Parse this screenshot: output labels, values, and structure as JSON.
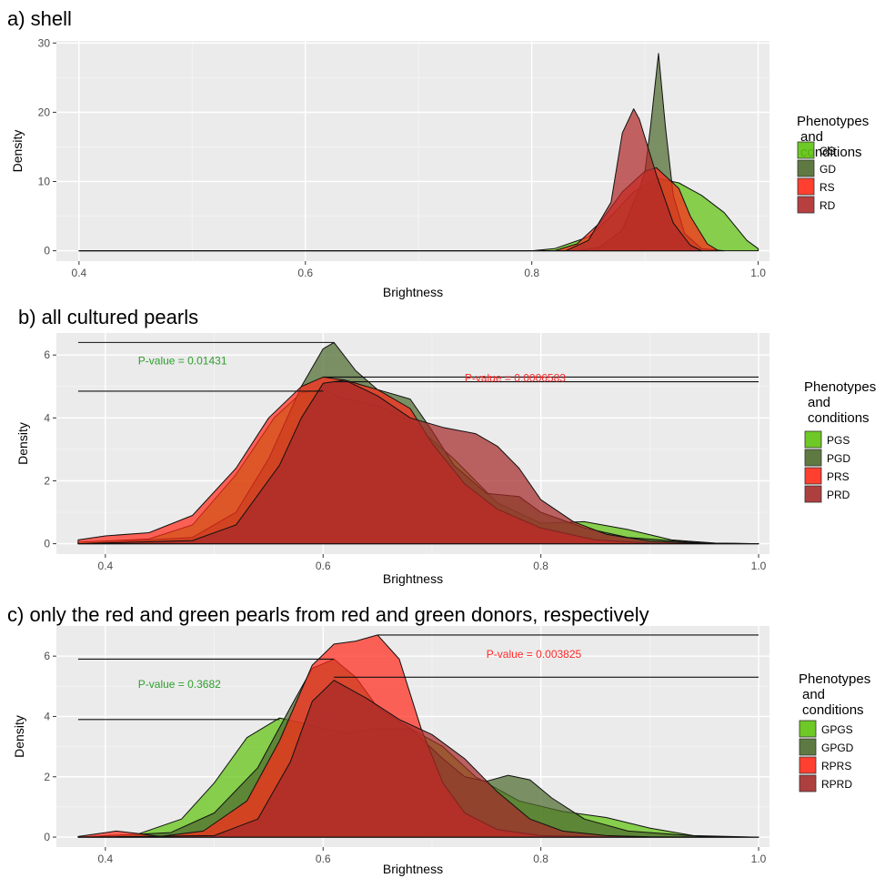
{
  "chart_data": [
    {
      "type": "area",
      "title": "a) shell",
      "xlabel": "Brightness",
      "ylabel": "Density",
      "xlim": [
        0.38,
        1.01
      ],
      "ylim": [
        -1.5,
        30.3
      ],
      "xticks": [
        0.4,
        0.6,
        0.8,
        1.0
      ],
      "xtick_labels": [
        "0.4",
        "0.6",
        "0.8",
        "1.0"
      ],
      "yticks": [
        0,
        10,
        20,
        30
      ],
      "ytick_labels": [
        "0",
        "10",
        "20",
        "30"
      ],
      "grid": true,
      "legend": {
        "title_lines": [
          "Phenotypes",
          "and",
          "conditions"
        ],
        "placement": "right"
      },
      "series": [
        {
          "name": "GS",
          "color": "#5ec20e",
          "x": [
            0.4,
            0.8,
            0.82,
            0.85,
            0.87,
            0.89,
            0.91,
            0.93,
            0.95,
            0.97,
            0.99,
            1.0
          ],
          "y": [
            0,
            0,
            0.3,
            2,
            5,
            8.5,
            10.5,
            9.8,
            8,
            5.5,
            1.5,
            0.3
          ]
        },
        {
          "name": "GD",
          "color": "#4d6b2e",
          "x": [
            0.4,
            0.84,
            0.86,
            0.88,
            0.895,
            0.9,
            0.905,
            0.912,
            0.918,
            0.925,
            0.935,
            0.95,
            0.97
          ],
          "y": [
            0,
            0,
            0.5,
            3,
            9,
            11.5,
            18,
            28.5,
            18,
            8,
            2.5,
            0.3,
            0
          ]
        },
        {
          "name": "RS",
          "color": "#ff2a1a",
          "x": [
            0.4,
            0.82,
            0.84,
            0.86,
            0.88,
            0.9,
            0.91,
            0.93,
            0.94,
            0.955,
            0.965
          ],
          "y": [
            0,
            0,
            1,
            4,
            8.5,
            11.5,
            12,
            9,
            5,
            1,
            0
          ]
        },
        {
          "name": "RD",
          "color": "#b02a2a",
          "x": [
            0.4,
            0.83,
            0.85,
            0.87,
            0.88,
            0.89,
            0.895,
            0.91,
            0.925,
            0.94,
            0.95
          ],
          "y": [
            0,
            0,
            1.5,
            7,
            17,
            20.5,
            19,
            11,
            4,
            0.8,
            0
          ]
        }
      ]
    },
    {
      "type": "area",
      "title": "b) all cultured pearls",
      "xlabel": "Brightness",
      "ylabel": "Density",
      "xlim": [
        0.355,
        1.01
      ],
      "ylim": [
        -0.33,
        6.7
      ],
      "xticks": [
        0.4,
        0.6,
        0.8,
        1.0
      ],
      "xtick_labels": [
        "0.4",
        "0.6",
        "0.8",
        "1.0"
      ],
      "yticks": [
        0,
        2,
        4,
        6
      ],
      "ytick_labels": [
        "0",
        "2",
        "4",
        "6"
      ],
      "grid": true,
      "legend": {
        "title_lines": [
          "Phenotypes",
          "and",
          "conditions"
        ],
        "placement": "right"
      },
      "series": [
        {
          "name": "PGS",
          "color": "#5ec20e",
          "x": [
            0.375,
            0.44,
            0.48,
            0.52,
            0.555,
            0.58,
            0.6,
            0.62,
            0.65,
            0.68,
            0.72,
            0.76,
            0.8,
            0.84,
            0.88,
            0.92,
            0.96,
            1.0
          ],
          "y": [
            0.05,
            0.15,
            0.6,
            2.2,
            4.0,
            4.8,
            4.9,
            4.6,
            4.4,
            3.9,
            2.7,
            1.3,
            0.65,
            0.7,
            0.45,
            0.12,
            0.02,
            0
          ]
        },
        {
          "name": "PGD",
          "color": "#4d6b2e",
          "x": [
            0.375,
            0.48,
            0.52,
            0.55,
            0.58,
            0.6,
            0.61,
            0.63,
            0.65,
            0.68,
            0.7,
            0.72,
            0.75,
            0.78,
            0.8,
            0.84,
            0.88,
            0.95,
            1.0
          ],
          "y": [
            0,
            0.2,
            1.0,
            2.7,
            5.0,
            6.2,
            6.4,
            5.5,
            4.9,
            4.6,
            3.6,
            2.5,
            1.6,
            1.5,
            1.0,
            0.5,
            0.2,
            0.02,
            0
          ]
        },
        {
          "name": "PRS",
          "color": "#ff2a1a",
          "x": [
            0.375,
            0.4,
            0.44,
            0.48,
            0.52,
            0.55,
            0.58,
            0.6,
            0.62,
            0.65,
            0.68,
            0.7,
            0.73,
            0.76,
            0.8,
            0.85,
            0.9,
            1.0
          ],
          "y": [
            0.12,
            0.25,
            0.35,
            0.9,
            2.4,
            4.0,
            5.0,
            5.3,
            5.2,
            4.9,
            4.3,
            3.2,
            1.9,
            1.1,
            0.5,
            0.12,
            0.02,
            0
          ]
        },
        {
          "name": "PRD",
          "color": "#a52a2a",
          "x": [
            0.375,
            0.48,
            0.52,
            0.56,
            0.58,
            0.6,
            0.62,
            0.65,
            0.68,
            0.71,
            0.74,
            0.76,
            0.78,
            0.8,
            0.83,
            0.86,
            0.9,
            0.95,
            1.0
          ],
          "y": [
            0,
            0.1,
            0.6,
            2.5,
            4.0,
            5.1,
            5.2,
            4.7,
            4.0,
            3.7,
            3.5,
            3.1,
            2.4,
            1.4,
            0.7,
            0.3,
            0.08,
            0.01,
            0
          ]
        }
      ],
      "reference_lines": [
        {
          "x_from": 0.375,
          "x_to": 0.61,
          "y": 6.4
        },
        {
          "x_from": 0.375,
          "x_to": 0.6,
          "y": 4.85
        },
        {
          "x_from": 0.6,
          "x_to": 1.0,
          "y": 5.3
        },
        {
          "x_from": 0.61,
          "x_to": 1.0,
          "y": 5.15
        }
      ],
      "annotations": [
        {
          "text": "P-value = 0.01431",
          "x": 0.43,
          "y": 5.7,
          "color": "#2e9e2e"
        },
        {
          "text": "P-value = 0.0006583",
          "x": 0.73,
          "y": 5.15,
          "color": "#ff2a2a"
        }
      ]
    },
    {
      "type": "area",
      "title": "c) only the red and green pearls from red and green donors, respectively",
      "xlabel": "Brightness",
      "ylabel": "Density",
      "xlim": [
        0.355,
        1.01
      ],
      "ylim": [
        -0.33,
        7.0
      ],
      "xticks": [
        0.4,
        0.6,
        0.8,
        1.0
      ],
      "xtick_labels": [
        "0.4",
        "0.6",
        "0.8",
        "1.0"
      ],
      "yticks": [
        0,
        2,
        4,
        6
      ],
      "ytick_labels": [
        "0",
        "2",
        "4",
        "6"
      ],
      "grid": true,
      "legend": {
        "title_lines": [
          "Phenotypes",
          "and",
          "conditions"
        ],
        "placement": "right"
      },
      "series": [
        {
          "name": "GPGS",
          "color": "#5ec20e",
          "x": [
            0.375,
            0.43,
            0.47,
            0.5,
            0.53,
            0.56,
            0.59,
            0.62,
            0.65,
            0.68,
            0.71,
            0.74,
            0.78,
            0.82,
            0.86,
            0.9,
            0.94,
            1.0
          ],
          "y": [
            0,
            0.1,
            0.6,
            1.8,
            3.3,
            3.95,
            3.7,
            3.45,
            3.6,
            3.6,
            3.0,
            2.0,
            1.2,
            0.85,
            0.65,
            0.3,
            0.05,
            0
          ]
        },
        {
          "name": "GPGD",
          "color": "#4d6b2e",
          "x": [
            0.375,
            0.46,
            0.5,
            0.54,
            0.57,
            0.59,
            0.61,
            0.63,
            0.65,
            0.68,
            0.71,
            0.73,
            0.75,
            0.77,
            0.79,
            0.81,
            0.84,
            0.88,
            0.95,
            1.0
          ],
          "y": [
            0,
            0.15,
            0.8,
            2.3,
            4.3,
            5.6,
            5.9,
            5.3,
            4.3,
            3.6,
            2.6,
            2.0,
            1.85,
            2.05,
            1.9,
            1.3,
            0.6,
            0.2,
            0.02,
            0
          ]
        },
        {
          "name": "RPRS",
          "color": "#ff2a1a",
          "x": [
            0.375,
            0.4,
            0.41,
            0.43,
            0.45,
            0.49,
            0.53,
            0.56,
            0.59,
            0.61,
            0.63,
            0.65,
            0.67,
            0.69,
            0.71,
            0.73,
            0.76,
            0.8,
            0.85,
            1.0
          ],
          "y": [
            0.02,
            0.15,
            0.2,
            0.12,
            0.02,
            0.2,
            1.2,
            3.2,
            5.7,
            6.4,
            6.5,
            6.7,
            5.9,
            3.6,
            1.8,
            0.8,
            0.25,
            0.05,
            0.01,
            0
          ]
        },
        {
          "name": "RPRD",
          "color": "#a52a2a",
          "x": [
            0.375,
            0.5,
            0.54,
            0.57,
            0.59,
            0.61,
            0.64,
            0.67,
            0.7,
            0.73,
            0.76,
            0.79,
            0.82,
            0.86,
            0.9,
            1.0
          ],
          "y": [
            0,
            0.05,
            0.6,
            2.5,
            4.5,
            5.2,
            4.6,
            3.9,
            3.4,
            2.6,
            1.5,
            0.6,
            0.2,
            0.05,
            0.01,
            0
          ]
        }
      ],
      "reference_lines": [
        {
          "x_from": 0.375,
          "x_to": 0.61,
          "y": 5.9
        },
        {
          "x_from": 0.375,
          "x_to": 0.56,
          "y": 3.9
        },
        {
          "x_from": 0.65,
          "x_to": 1.0,
          "y": 6.7
        },
        {
          "x_from": 0.61,
          "x_to": 1.0,
          "y": 5.3
        }
      ],
      "annotations": [
        {
          "text": "P-value = 0.3682",
          "x": 0.43,
          "y": 4.95,
          "color": "#2e9e2e"
        },
        {
          "text": "P-value = 0.003825",
          "x": 0.75,
          "y": 5.95,
          "color": "#ff2a2a"
        }
      ]
    }
  ]
}
